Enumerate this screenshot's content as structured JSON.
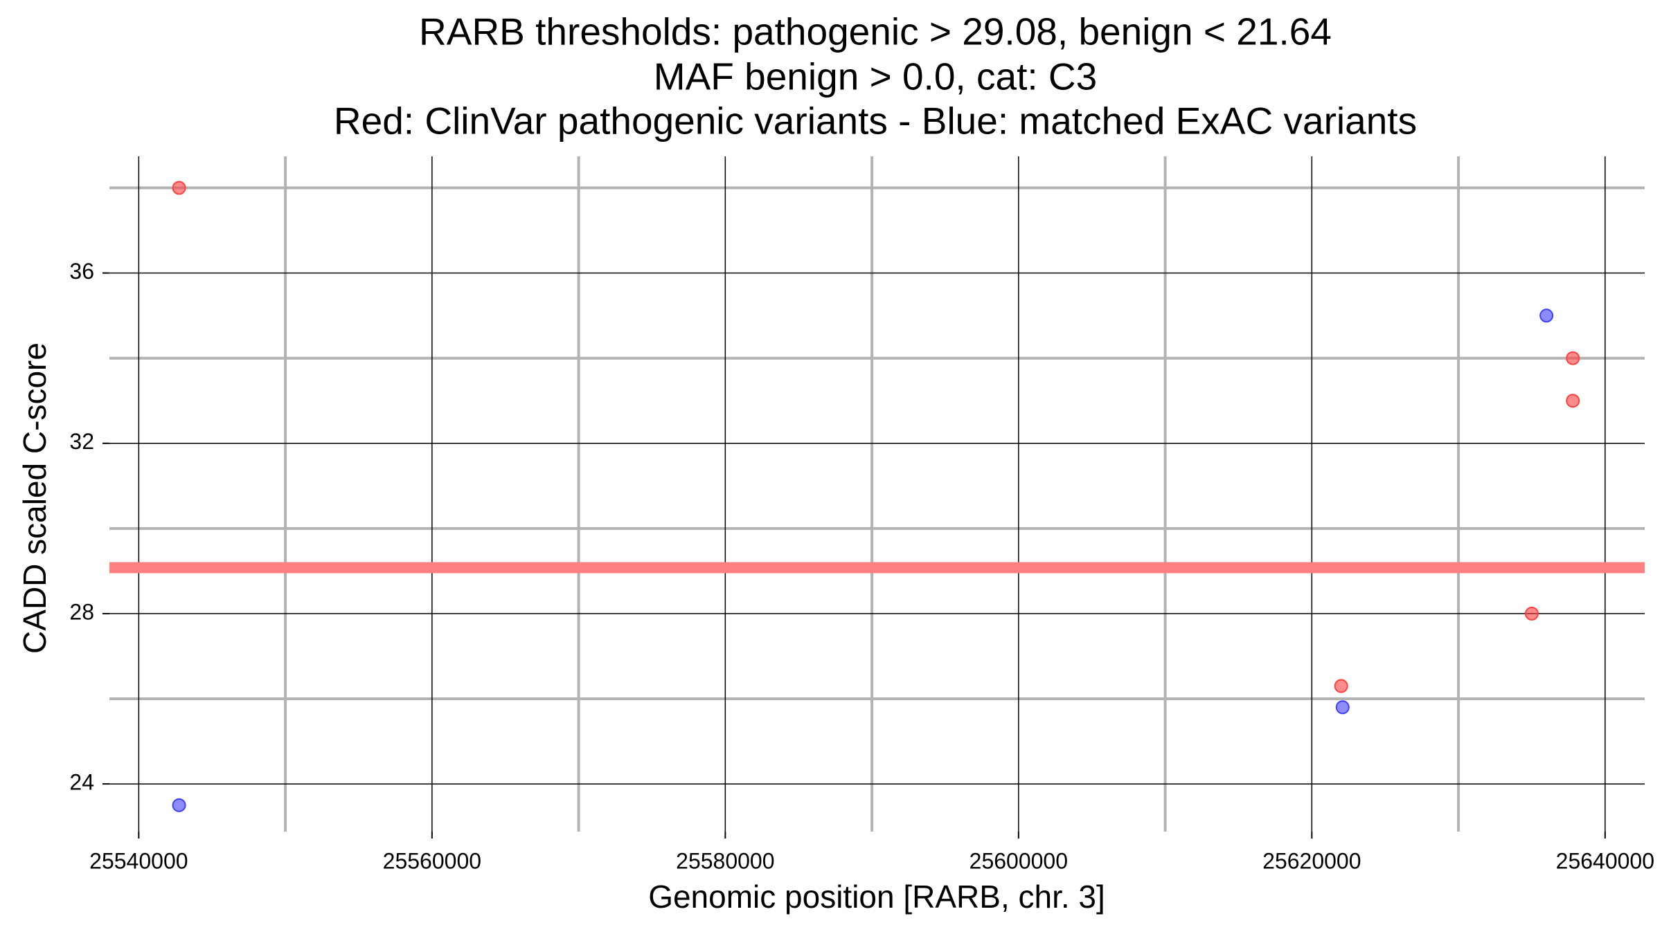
{
  "chart_data": {
    "type": "scatter",
    "title": [
      "RARB thresholds: pathogenic > 29.08, benign < 21.64",
      "MAF benign > 0.0, cat: C3",
      "Red: ClinVar pathogenic variants - Blue: matched ExAC variants"
    ],
    "x_label": "Genomic position [RARB, chr. 3]",
    "y_label": "CADD scaled C-score",
    "xlim": [
      25538000,
      25642700
    ],
    "ylim": [
      22.88,
      38.74
    ],
    "xticks": [
      25540000,
      25560000,
      25580000,
      25600000,
      25620000,
      25640000
    ],
    "yticks": [
      24,
      28,
      32,
      36
    ],
    "x_minor_ticks": [
      25550000,
      25570000,
      25590000,
      25610000,
      25630000
    ],
    "y_minor_ticks": [
      26,
      30,
      34,
      38
    ],
    "grid": true,
    "hline": {
      "value": 29.08,
      "color": "#ff8080"
    },
    "series": [
      {
        "color": "#ff4040",
        "x": [
          25542750,
          25637800,
          25637800,
          25635000,
          25622000
        ],
        "values": [
          38,
          34,
          33,
          28,
          26.3
        ]
      },
      {
        "color": "#4040ff",
        "x": [
          25542750,
          25636000,
          25622100
        ],
        "values": [
          23.5,
          35,
          25.8
        ]
      }
    ]
  }
}
